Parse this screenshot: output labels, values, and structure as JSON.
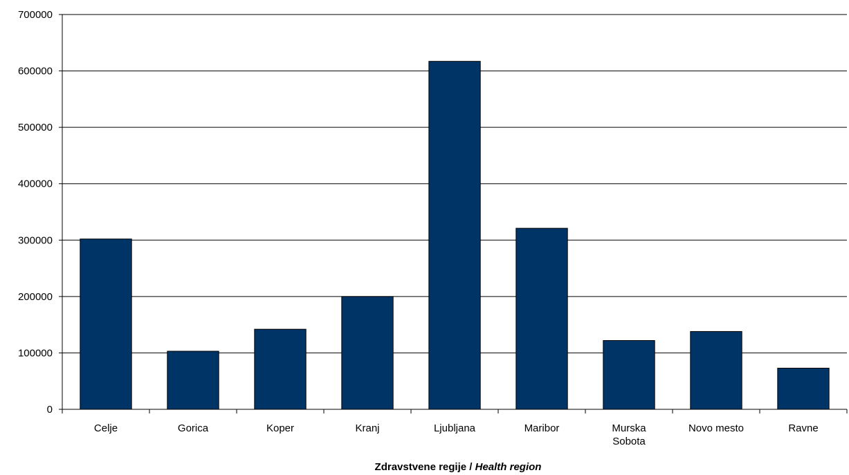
{
  "chart_data": {
    "type": "bar",
    "categories": [
      "Celje",
      "Gorica",
      "Koper",
      "Kranj",
      "Ljubljana",
      "Maribor",
      "Murska Sobota",
      "Novo mesto",
      "Ravne"
    ],
    "values": [
      302000,
      103000,
      142000,
      200000,
      617000,
      321000,
      122000,
      138000,
      73000
    ],
    "xlabel": {
      "main": "Zdravstvene regije / ",
      "italic": "Health region"
    },
    "ylabel": "",
    "ylim": [
      0,
      700000
    ],
    "yticks": [
      "0",
      "100000",
      "200000",
      "300000",
      "400000",
      "500000",
      "600000",
      "700000"
    ],
    "grid": true,
    "legend": "none",
    "colors": {
      "bar": "#003366",
      "bar_stroke": "#000000",
      "grid": "#000000"
    }
  }
}
